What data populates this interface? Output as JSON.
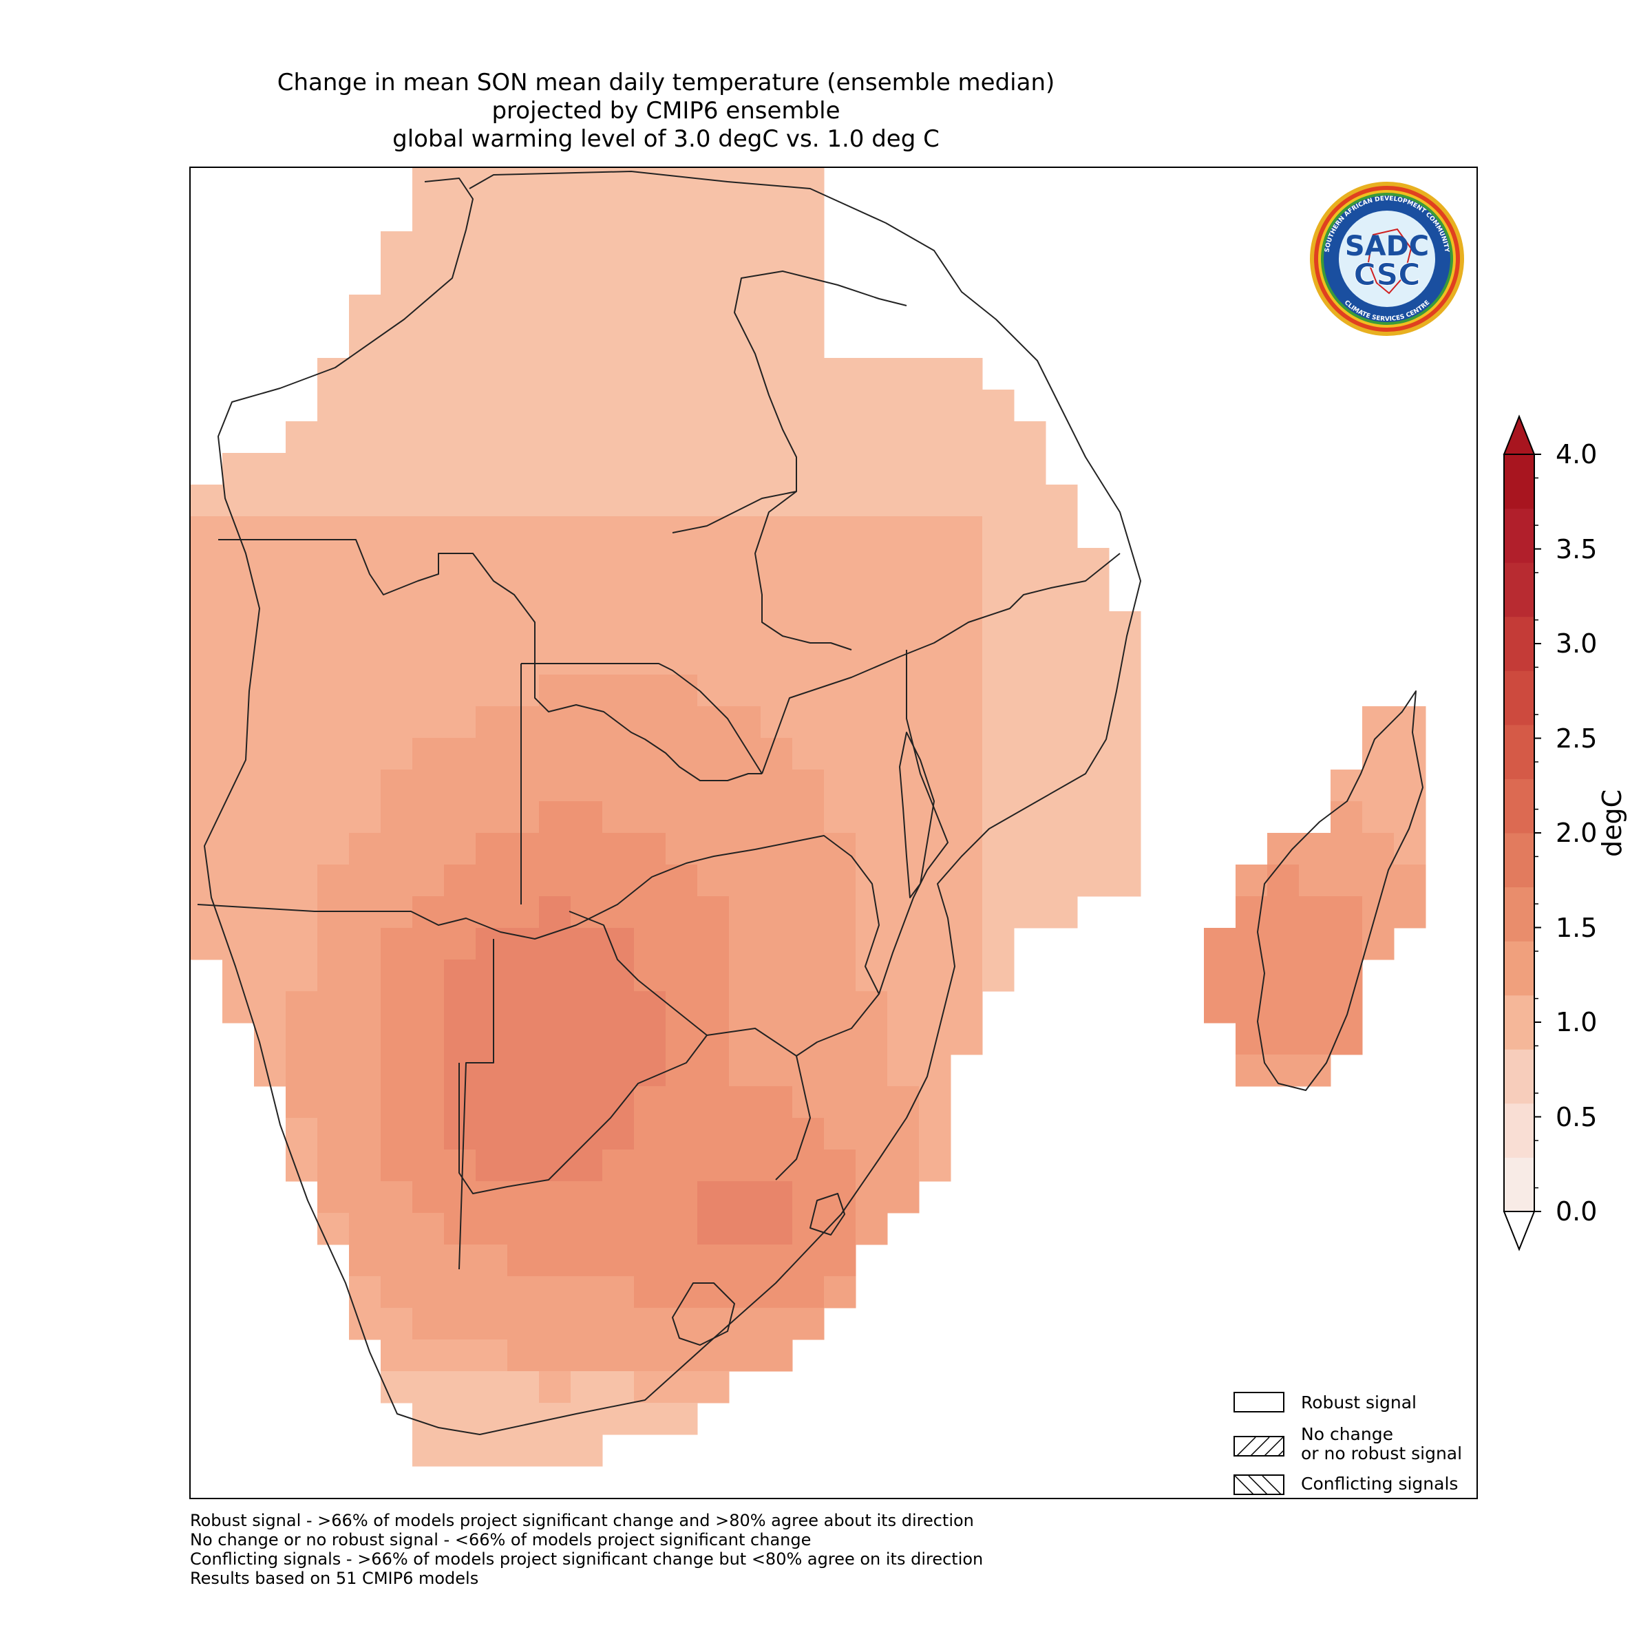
{
  "title": {
    "line1": "Change in mean SON mean daily temperature (ensemble median)",
    "line2": "projected by CMIP6 ensemble",
    "line3": "global warming level of 3.0 degC vs. 1.0 deg C"
  },
  "colorbar": {
    "label": "degC",
    "ticks": [
      "4.0",
      "3.5",
      "3.0",
      "2.5",
      "2.0",
      "1.5",
      "1.0",
      "0.5",
      "0.0"
    ],
    "range": [
      0.0,
      4.0
    ],
    "extend": "both",
    "colors": [
      "#f8ebe6",
      "#f9ded4",
      "#f7cdbb",
      "#f5b799",
      "#f0a07d",
      "#e98d6c",
      "#e27b5e",
      "#dc6a52",
      "#d55a47",
      "#cd4a3e",
      "#c43b37",
      "#b82b31",
      "#b11f2b",
      "#a8151f"
    ]
  },
  "logo": {
    "ring_text_top": "SOUTHERN AFRICAN DEVELOPMENT COMMUNITY",
    "ring_text_bottom": "CLIMATE SERVICES CENTRE",
    "text_top": "SADC",
    "text_bottom": "CSC"
  },
  "legend": [
    {
      "label": "Robust signal",
      "pattern": "none"
    },
    {
      "label": "No change\nor no robust signal",
      "pattern": "forward-hatch"
    },
    {
      "label": "Conflicting signals",
      "pattern": "back-hatch"
    }
  ],
  "footnotes": [
    "Robust signal - >66% of models project significant change and >80% agree about its direction",
    "No change or no robust signal - <66% of models project significant change",
    "Conflicting signals - >66% of models project significant change but <80% agree on its direction",
    "Results based on 51 CMIP6 models"
  ]
}
